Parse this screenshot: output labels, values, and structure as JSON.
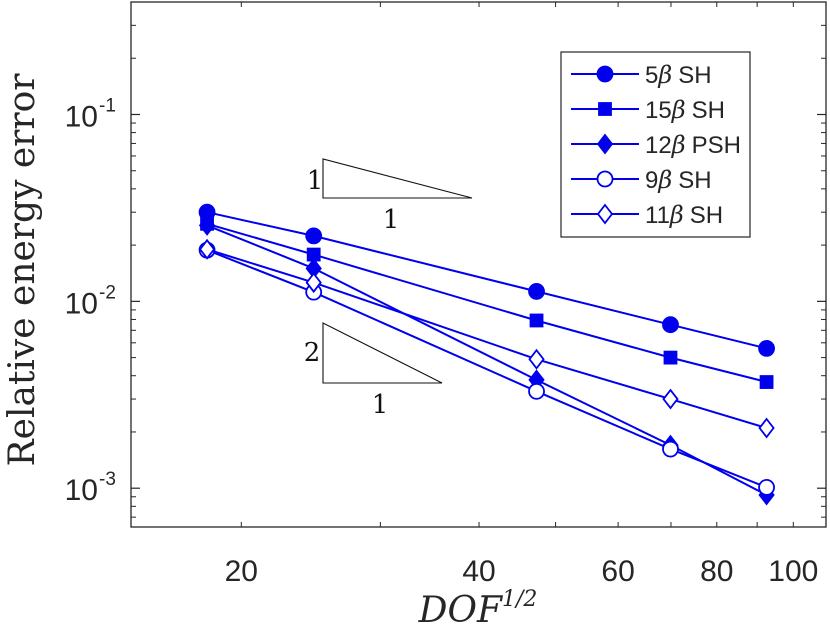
{
  "chart_data": {
    "type": "line",
    "xscale": "log",
    "yscale": "log",
    "xlim": [
      14.5,
      110
    ],
    "ylim": [
      0.00062,
      0.4
    ],
    "xlabel": "DOF",
    "xlabel_sup": "1/2",
    "ylabel": "Relative energy error",
    "xticks": [
      {
        "value": 20,
        "label": "20"
      },
      {
        "value": 40,
        "label": "40"
      },
      {
        "value": 60,
        "label": "60"
      },
      {
        "value": 80,
        "label": "80"
      },
      {
        "value": 100,
        "label": "100"
      }
    ],
    "yticks": [
      {
        "value": 0.001,
        "base": "10",
        "exp": "-3"
      },
      {
        "value": 0.01,
        "base": "10",
        "exp": "-2"
      },
      {
        "value": 0.1,
        "base": "10",
        "exp": "-1"
      }
    ],
    "legend_position": "top-right",
    "color": "#0000ee",
    "series": [
      {
        "name": "5β SH",
        "label_prefix": "5",
        "label_suffix": "SH",
        "marker": "circle",
        "filled": true,
        "x": [
          18.1,
          24.7,
          47.3,
          69.9,
          92.5
        ],
        "y": [
          0.03,
          0.0224,
          0.0113,
          0.0075,
          0.0056
        ]
      },
      {
        "name": "15β SH",
        "label_prefix": "15",
        "label_suffix": "SH",
        "marker": "square",
        "filled": true,
        "x": [
          18.1,
          24.7,
          47.3,
          69.9,
          92.5
        ],
        "y": [
          0.026,
          0.0178,
          0.0079,
          0.005,
          0.0037
        ]
      },
      {
        "name": "12β PSH",
        "label_prefix": "12",
        "label_suffix": "PSH",
        "marker": "diamond",
        "filled": true,
        "x": [
          18.1,
          24.7,
          47.3,
          69.9,
          92.5
        ],
        "y": [
          0.0255,
          0.015,
          0.0038,
          0.0017,
          0.00092
        ]
      },
      {
        "name": "9β SH",
        "label_prefix": "9",
        "label_suffix": "SH",
        "marker": "circle",
        "filled": false,
        "x": [
          18.1,
          24.7,
          47.3,
          69.9,
          92.5
        ],
        "y": [
          0.0188,
          0.0112,
          0.0033,
          0.00162,
          0.00101
        ]
      },
      {
        "name": "11β SH",
        "label_prefix": "11",
        "label_suffix": "SH",
        "marker": "diamond",
        "filled": false,
        "x": [
          18.1,
          24.7,
          47.3,
          69.9,
          92.5
        ],
        "y": [
          0.019,
          0.0126,
          0.0049,
          0.003,
          0.0021
        ]
      }
    ],
    "annotations": [
      {
        "name": "slope-triangle-1",
        "rise": "1",
        "run": "1"
      },
      {
        "name": "slope-triangle-2",
        "rise": "2",
        "run": "1"
      }
    ]
  }
}
